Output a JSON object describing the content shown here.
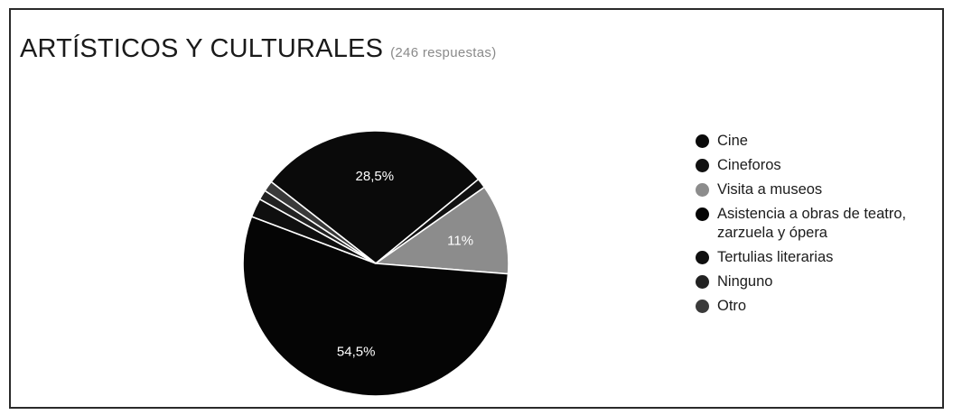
{
  "chart": {
    "title": "ARTÍSTICOS Y CULTURALES",
    "subtitle": "(246 respuestas)"
  },
  "chart_data": {
    "type": "pie",
    "title": "ARTÍSTICOS Y CULTURALES",
    "subtitle": "(246 respuestas)",
    "legend_position": "right",
    "slices": [
      {
        "name": "Cine",
        "value": 28.5,
        "label": "28,5%",
        "color": "#0a0a0a"
      },
      {
        "name": "Cineforos",
        "value": 1.2,
        "label": "",
        "color": "#111111"
      },
      {
        "name": "Visita a museos",
        "value": 11,
        "label": "11%",
        "color": "#8c8c8c"
      },
      {
        "name": "Asistencia a obras de teatro, zarzuela y ópera",
        "value": 54.5,
        "label": "54,5%",
        "color": "#050505"
      },
      {
        "name": "Tertulias literarias",
        "value": 2.3,
        "label": "",
        "color": "#0f0f0f"
      },
      {
        "name": "Ninguno",
        "value": 1.2,
        "label": "",
        "color": "#222222"
      },
      {
        "name": "Otro",
        "value": 1.3,
        "label": "",
        "color": "#3a3a3a"
      }
    ],
    "legend": [
      {
        "label": "Cine",
        "color": "#0a0a0a"
      },
      {
        "label": "Cineforos",
        "color": "#111111"
      },
      {
        "label": "Visita a museos",
        "color": "#8c8c8c"
      },
      {
        "label": "Asistencia a obras de teatro, zarzuela y ópera",
        "color": "#050505"
      },
      {
        "label": "Tertulias literarias",
        "color": "#0f0f0f"
      },
      {
        "label": "Ninguno",
        "color": "#222222"
      },
      {
        "label": "Otro",
        "color": "#3a3a3a"
      }
    ]
  }
}
